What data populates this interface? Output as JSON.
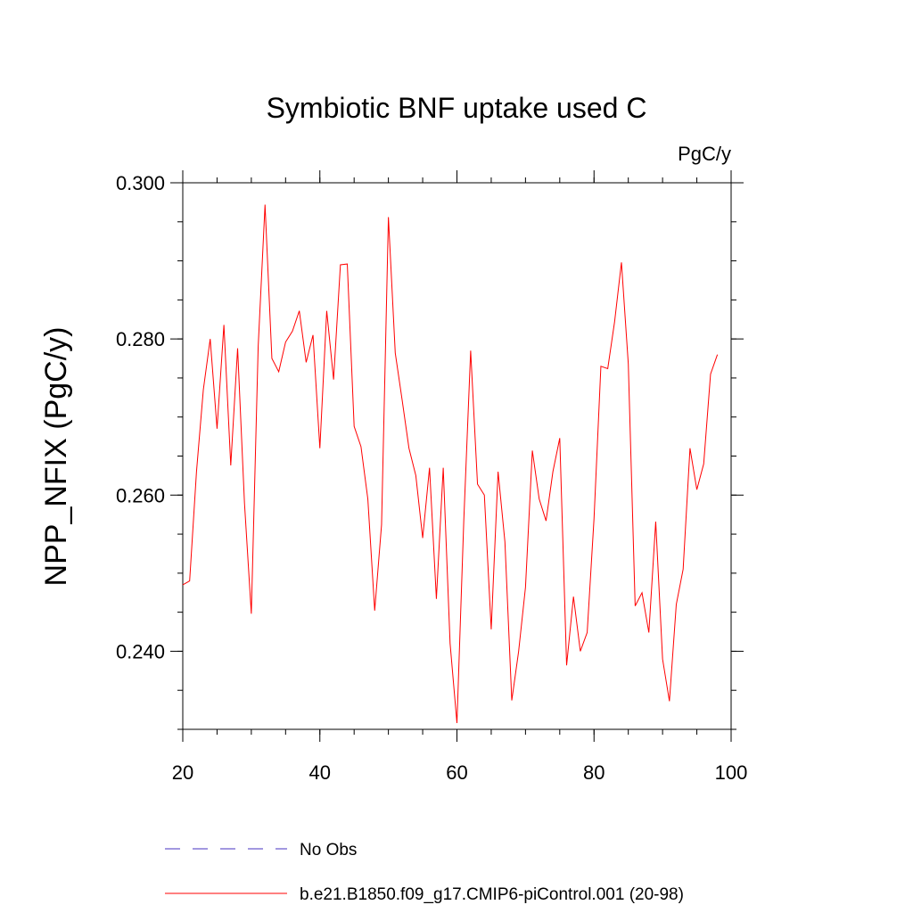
{
  "chart_data": {
    "type": "line",
    "title": "Symbiotic BNF uptake used C",
    "units": "PgC/y",
    "ylabel": "NPP_NFIX  (PgC/y)",
    "xlabel": "",
    "xlim": [
      20,
      100
    ],
    "ylim": [
      0.23,
      0.3
    ],
    "x_ticks": [
      20,
      40,
      60,
      80,
      100
    ],
    "x_tick_labels": [
      "20",
      "40",
      "60",
      "80",
      "100"
    ],
    "y_ticks": [
      0.24,
      0.26,
      0.28,
      0.3
    ],
    "y_tick_labels": [
      "0.240",
      "0.260",
      "0.280",
      "0.300"
    ],
    "grid": false,
    "legend_position": "bottom",
    "series": [
      {
        "name": "No Obs",
        "color": "#6a5acd",
        "style": "dashed",
        "x": [],
        "y": []
      },
      {
        "name": "b.e21.B1850.f09_g17.CMIP6-piControl.001 (20-98)",
        "color": "#ff0000",
        "style": "solid",
        "x": [
          20,
          21,
          22,
          23,
          24,
          25,
          26,
          27,
          28,
          29,
          30,
          31,
          32,
          33,
          34,
          35,
          36,
          37,
          38,
          39,
          40,
          41,
          42,
          43,
          44,
          45,
          46,
          47,
          48,
          49,
          50,
          51,
          52,
          53,
          54,
          55,
          56,
          57,
          58,
          59,
          60,
          61,
          62,
          63,
          64,
          65,
          66,
          67,
          68,
          69,
          70,
          71,
          72,
          73,
          74,
          75,
          76,
          77,
          78,
          79,
          80,
          81,
          82,
          83,
          84,
          85,
          86,
          87,
          88,
          89,
          90,
          91,
          92,
          93,
          94,
          95,
          96,
          97,
          98
        ],
        "y": [
          0.2485,
          0.249,
          0.263,
          0.2735,
          0.28,
          0.2685,
          0.2818,
          0.2638,
          0.2788,
          0.259,
          0.2448,
          0.279,
          0.2972,
          0.2775,
          0.2758,
          0.2796,
          0.281,
          0.2836,
          0.277,
          0.2805,
          0.266,
          0.2836,
          0.2748,
          0.2895,
          0.2896,
          0.2688,
          0.2662,
          0.2595,
          0.2452,
          0.2562,
          0.2956,
          0.2782,
          0.2722,
          0.266,
          0.2625,
          0.2545,
          0.2635,
          0.2467,
          0.2635,
          0.241,
          0.2308,
          0.2568,
          0.2785,
          0.2614,
          0.26,
          0.2428,
          0.263,
          0.254,
          0.2337,
          0.24,
          0.2482,
          0.2657,
          0.2595,
          0.2567,
          0.263,
          0.2673,
          0.2382,
          0.247,
          0.24,
          0.2424,
          0.257,
          0.2765,
          0.2762,
          0.2822,
          0.2898,
          0.2768,
          0.2458,
          0.2475,
          0.2424,
          0.2566,
          0.239,
          0.2336,
          0.246,
          0.2505,
          0.266,
          0.2607,
          0.264,
          0.2755,
          0.278
        ]
      }
    ]
  }
}
